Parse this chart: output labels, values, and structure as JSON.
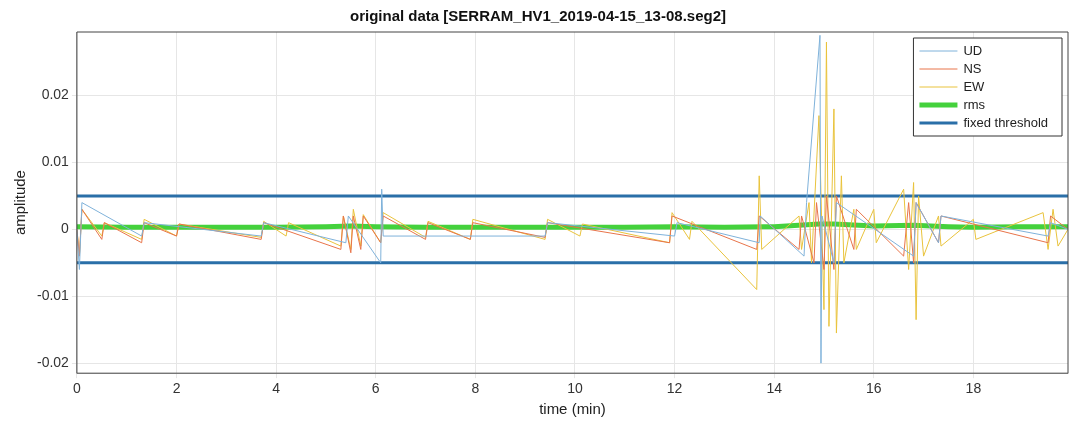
{
  "chart_data": {
    "type": "line",
    "title": "original data [SERRAM_HV1_2019-04-15_13-08.seg2]",
    "xlabel": "time (min)",
    "ylabel": "amplitude",
    "xlim": [
      0,
      19.9
    ],
    "ylim": [
      -0.0215,
      0.0295
    ],
    "xticks": [
      0,
      2,
      4,
      6,
      8,
      10,
      12,
      14,
      16,
      18
    ],
    "yticks": [
      -0.02,
      -0.01,
      0,
      0.01,
      0.02
    ],
    "grid": true,
    "legend": "top right",
    "series": [
      {
        "name": "UD",
        "color": "#7fb2da",
        "x": [
          0,
          0.05,
          0.1,
          1.3,
          1.35,
          3.7,
          3.75,
          5.4,
          5.45,
          6.1,
          6.12,
          6.15,
          9.4,
          9.45,
          12.0,
          12.05,
          13.7,
          13.72,
          14.6,
          14.65,
          14.92,
          14.94,
          14.96,
          15.2,
          15.25,
          16.8,
          16.85,
          17.3,
          17.35,
          19.5,
          19.55,
          19.9
        ],
        "values": [
          0,
          -0.006,
          0.004,
          -0.001,
          0.001,
          -0.001,
          0.001,
          -0.002,
          0.002,
          -0.005,
          0.006,
          -0.001,
          -0.001,
          0.001,
          -0.001,
          0.001,
          -0.002,
          0.002,
          -0.004,
          0.004,
          0.029,
          -0.02,
          0.002,
          -0.005,
          0.004,
          -0.004,
          0.004,
          -0.002,
          0.002,
          -0.001,
          0.001,
          0
        ]
      },
      {
        "name": "NS",
        "color": "#e8744a",
        "x": [
          0,
          0.05,
          0.1,
          0.5,
          0.55,
          1.3,
          1.35,
          2.0,
          2.05,
          3.7,
          3.75,
          5.3,
          5.35,
          5.5,
          5.55,
          5.7,
          5.75,
          6.1,
          6.15,
          7.0,
          7.05,
          7.9,
          7.95,
          9.4,
          9.45,
          11.9,
          11.95,
          13.65,
          13.7,
          14.5,
          14.55,
          14.8,
          14.85,
          15.0,
          15.05,
          15.2,
          15.25,
          15.6,
          15.65,
          16.6,
          16.7,
          16.8,
          16.85,
          17.3,
          17.35,
          19.5,
          19.55,
          19.9
        ],
        "values": [
          0,
          -0.004,
          0.003,
          -0.0015,
          0.001,
          -0.002,
          0.001,
          -0.001,
          0.0008,
          -0.0015,
          0.001,
          -0.003,
          0.002,
          -0.0035,
          0.002,
          -0.003,
          0.002,
          -0.002,
          0.002,
          -0.0015,
          0.001,
          -0.0015,
          0.001,
          -0.0012,
          0.001,
          -0.002,
          0.002,
          -0.003,
          0.002,
          -0.003,
          0.002,
          -0.005,
          0.004,
          -0.006,
          0.005,
          -0.006,
          0.005,
          -0.003,
          0.003,
          -0.004,
          0.004,
          -0.005,
          0.004,
          -0.002,
          0.002,
          -0.002,
          0.002,
          0
        ]
      },
      {
        "name": "EW",
        "color": "#e9c33c",
        "x": [
          0,
          0.05,
          0.1,
          0.5,
          0.55,
          1.3,
          1.35,
          2.0,
          2.05,
          3.7,
          3.75,
          4.2,
          4.25,
          5.3,
          5.35,
          5.5,
          5.55,
          5.7,
          5.75,
          6.1,
          6.15,
          7.0,
          7.05,
          7.9,
          7.95,
          9.4,
          9.45,
          10.1,
          10.15,
          11.9,
          11.95,
          12.3,
          12.35,
          13.65,
          13.7,
          13.75,
          14.5,
          14.55,
          14.7,
          14.75,
          14.9,
          15.0,
          15.05,
          15.1,
          15.2,
          15.25,
          15.35,
          15.4,
          15.6,
          15.65,
          16.0,
          16.05,
          16.6,
          16.7,
          16.8,
          16.85,
          16.9,
          17.0,
          17.3,
          17.35,
          18.0,
          18.05,
          19.4,
          19.5,
          19.6,
          19.7,
          19.9
        ],
        "values": [
          0,
          -0.004,
          0.003,
          -0.001,
          0.001,
          -0.0015,
          0.0015,
          -0.001,
          0.0008,
          -0.0012,
          0.0012,
          -0.001,
          0.001,
          -0.0025,
          0.002,
          -0.003,
          0.003,
          -0.0025,
          0.0022,
          -0.002,
          0.0025,
          -0.0012,
          0.0012,
          -0.0015,
          0.0015,
          -0.0015,
          0.0015,
          -0.001,
          0.0008,
          -0.002,
          0.0025,
          -0.0015,
          0.0012,
          -0.009,
          0.008,
          -0.003,
          0.002,
          -0.003,
          0.004,
          -0.005,
          0.017,
          -0.012,
          0.028,
          -0.0145,
          0.018,
          -0.0155,
          0.008,
          -0.005,
          0.003,
          -0.003,
          0.003,
          -0.002,
          0.006,
          -0.006,
          0.007,
          -0.0135,
          0.005,
          -0.004,
          0.002,
          -0.0025,
          0.0015,
          -0.0015,
          0.0025,
          -0.003,
          0.003,
          -0.0025,
          0
        ]
      },
      {
        "name": "rms",
        "color": "#44d13c",
        "x": [
          0,
          1,
          2,
          3,
          4,
          5,
          5.5,
          6,
          7,
          8,
          9,
          10,
          11,
          12,
          13,
          14,
          14.9,
          15.2,
          16,
          16.8,
          17.5,
          18,
          19,
          19.9
        ],
        "values": [
          0.0004,
          0.0003,
          0.0003,
          0.0003,
          0.0003,
          0.0004,
          0.0005,
          0.0004,
          0.0003,
          0.0003,
          0.0003,
          0.0003,
          0.0003,
          0.0004,
          0.0003,
          0.0004,
          0.0008,
          0.0008,
          0.0005,
          0.0006,
          0.0004,
          0.0003,
          0.0004,
          0.0004
        ]
      }
    ],
    "ref_lines": [
      {
        "axis": "y",
        "value": 0.005,
        "label": "fixed threshold",
        "color": "#2a6fa8"
      },
      {
        "axis": "y",
        "value": -0.005,
        "color": "#2a6fa8"
      }
    ]
  }
}
